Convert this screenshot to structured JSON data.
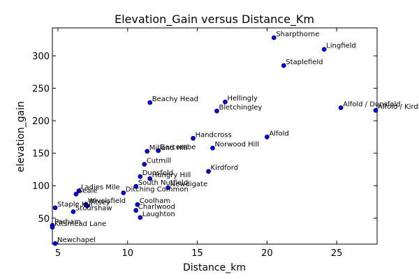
{
  "chart_data": {
    "type": "scatter",
    "title": "Elevation_Gain versus Distance_Km",
    "xlabel": "Distance_km",
    "ylabel": "elevation_gain",
    "xlim": [
      4.6,
      27.9
    ],
    "ylim": [
      10,
      343
    ],
    "xticks": [
      5,
      10,
      15,
      20,
      25
    ],
    "yticks": [
      50,
      100,
      150,
      200,
      250,
      300
    ],
    "grid": false,
    "marker_color": "#0000ff",
    "marker_edge": "#000000",
    "points": [
      {
        "label": "Sharpthorne",
        "x": 20.5,
        "y": 328
      },
      {
        "label": "Lingfield",
        "x": 24.1,
        "y": 310
      },
      {
        "label": "Staplefield",
        "x": 21.2,
        "y": 285
      },
      {
        "label": "Hellingly",
        "x": 17.0,
        "y": 229
      },
      {
        "label": "Beachy Head",
        "x": 11.6,
        "y": 228
      },
      {
        "label": "Bletchingley",
        "x": 16.4,
        "y": 215
      },
      {
        "label": "Alfold / Dunsfold",
        "x": 25.3,
        "y": 220
      },
      {
        "label": "Alfold / Kirdford",
        "x": 27.8,
        "y": 216
      },
      {
        "label": "Alfold",
        "x": 20.0,
        "y": 175
      },
      {
        "label": "Handcross",
        "x": 14.7,
        "y": 173
      },
      {
        "label": "Norwood Hill",
        "x": 16.1,
        "y": 158
      },
      {
        "label": "Milland Hill",
        "x": 11.4,
        "y": 153
      },
      {
        "label": "Barcombe",
        "x": 12.2,
        "y": 154
      },
      {
        "label": "Cutmill",
        "x": 11.2,
        "y": 133
      },
      {
        "label": "Kirdford",
        "x": 15.8,
        "y": 122
      },
      {
        "label": "Dunsfold",
        "x": 10.9,
        "y": 114
      },
      {
        "label": "Hungry Hill",
        "x": 11.6,
        "y": 111
      },
      {
        "label": "South Nutfield",
        "x": 10.6,
        "y": 99
      },
      {
        "label": "Newdigate",
        "x": 12.9,
        "y": 97
      },
      {
        "label": "Ditching Common",
        "x": 9.7,
        "y": 89
      },
      {
        "label": "Ladies Mile",
        "x": 6.5,
        "y": 92
      },
      {
        "label": "Seale",
        "x": 6.3,
        "y": 87
      },
      {
        "label": "Coolham",
        "x": 10.7,
        "y": 71
      },
      {
        "label": "Wivelsfield",
        "x": 7.0,
        "y": 71
      },
      {
        "label": "Staple Hill",
        "x": 4.8,
        "y": 66
      },
      {
        "label": "Charlwood",
        "x": 10.6,
        "y": 62
      },
      {
        "label": "Titsey",
        "x": 7.1,
        "y": 69
      },
      {
        "label": "Stourshaw",
        "x": 6.1,
        "y": 60
      },
      {
        "label": "Laughton",
        "x": 10.9,
        "y": 51
      },
      {
        "label": "Parham",
        "x": 4.6,
        "y": 39
      },
      {
        "label": "Kitsmead Lane",
        "x": 4.6,
        "y": 36
      },
      {
        "label": "Newchapel",
        "x": 4.8,
        "y": 11
      }
    ]
  }
}
